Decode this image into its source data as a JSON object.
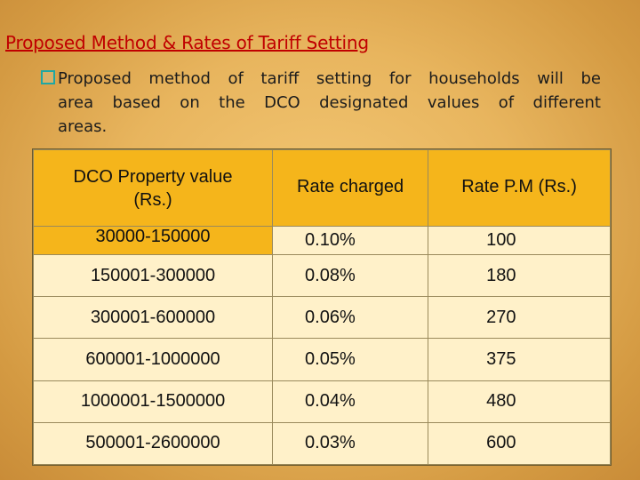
{
  "title": "Proposed Method  &  Rates of Tariff Setting",
  "bullet": {
    "icon": "square-bullet-icon",
    "line1": "Proposed method of tariff setting  for households will be",
    "line2": "area based on the DCO designated values of different",
    "line3": "areas."
  },
  "table": {
    "headers": {
      "property_value": "DCO Property value",
      "property_value_unit": "(Rs.)",
      "rate_charged": "Rate charged",
      "rate_pm": "Rate P.M (Rs.)"
    },
    "rows": [
      {
        "range": "30000-150000",
        "rate": "0.10%",
        "pm": "100"
      },
      {
        "range": "150001-300000",
        "rate": "0.08%",
        "pm": "180"
      },
      {
        "range": "300001-600000",
        "rate": "0.06%",
        "pm": "270"
      },
      {
        "range": "600001-1000000",
        "rate": "0.05%",
        "pm": "375"
      },
      {
        "range": "1000001-1500000",
        "rate": "0.04%",
        "pm": "480"
      },
      {
        "range": "500001-2600000",
        "rate": "0.03%",
        "pm": "600"
      }
    ]
  }
}
